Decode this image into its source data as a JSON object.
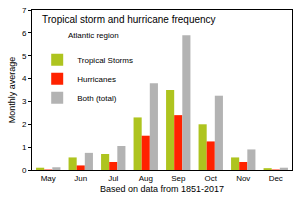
{
  "chart_data": {
    "type": "bar",
    "title": "Tropical storm and hurricane frequency",
    "subtitle": "Atlantic region",
    "x_label": "Based on data from 1851-2017",
    "y_label": "Monthly average",
    "categories": [
      "May",
      "Jun",
      "Jul",
      "Aug",
      "Sep",
      "Oct",
      "Nov",
      "Dec"
    ],
    "series": [
      {
        "name": "Tropical Storms",
        "color": "#aec41f",
        "values": [
          0.1,
          0.55,
          0.7,
          2.3,
          3.5,
          2.0,
          0.55,
          0.08
        ]
      },
      {
        "name": "Hurricanes",
        "color": "#ff2200",
        "values": [
          0.02,
          0.2,
          0.35,
          1.5,
          2.4,
          1.25,
          0.35,
          0.02
        ]
      },
      {
        "name": "Both (total)",
        "color": "#b3b3b3",
        "values": [
          0.12,
          0.75,
          1.05,
          3.8,
          5.9,
          3.25,
          0.9,
          0.1
        ]
      }
    ],
    "ylim": [
      0,
      7
    ],
    "yticks": [
      0,
      1,
      2,
      3,
      4,
      5,
      6,
      7
    ],
    "grid": false,
    "legend": "upper left"
  }
}
